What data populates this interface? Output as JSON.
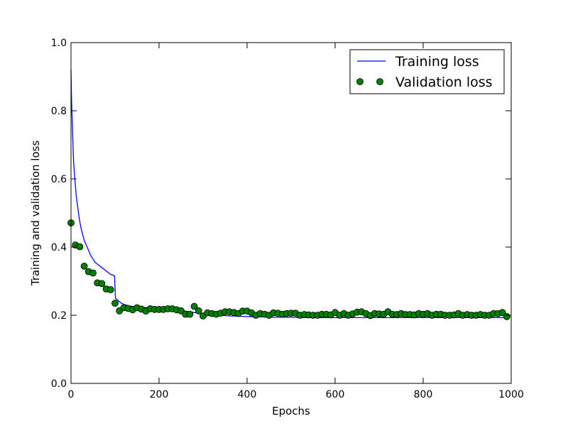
{
  "chart_data": {
    "type": "line",
    "title": "",
    "xlabel": "Epochs",
    "ylabel": "Training and validation loss",
    "xlim": [
      0,
      1000
    ],
    "ylim": [
      0.0,
      1.0
    ],
    "xticks": [
      0,
      200,
      400,
      600,
      800,
      1000
    ],
    "xtick_labels": [
      "0",
      "200",
      "400",
      "600",
      "800",
      "1000"
    ],
    "yticks": [
      0.0,
      0.2,
      0.4,
      0.6,
      0.8,
      1.0
    ],
    "ytick_labels": [
      "0.0",
      "0.2",
      "0.4",
      "0.6",
      "0.8",
      "1.0"
    ],
    "grid": false,
    "legend_position": "top-right",
    "series": [
      {
        "name": "Training loss",
        "kind": "line",
        "color": "#0000ff",
        "x": [
          0,
          1,
          2,
          3,
          4,
          5,
          6,
          8,
          10,
          12,
          15,
          18,
          22,
          26,
          30,
          35,
          40,
          45,
          50,
          55,
          60,
          65,
          70,
          75,
          80,
          85,
          90,
          95,
          99,
          101,
          105,
          110,
          115,
          120,
          130,
          140,
          150,
          160,
          170,
          180,
          200,
          220,
          240,
          260,
          280,
          300,
          320,
          340,
          360,
          380,
          400,
          420,
          440,
          460,
          480,
          500,
          520,
          540,
          560,
          580,
          600,
          620,
          640,
          660,
          680,
          700,
          720,
          740,
          760,
          780,
          800,
          820,
          840,
          860,
          880,
          900,
          920,
          940,
          960,
          980,
          995
        ],
        "y": [
          0.92,
          0.85,
          0.8,
          0.76,
          0.72,
          0.68,
          0.65,
          0.61,
          0.58,
          0.55,
          0.52,
          0.49,
          0.46,
          0.44,
          0.42,
          0.405,
          0.39,
          0.375,
          0.365,
          0.355,
          0.35,
          0.345,
          0.34,
          0.335,
          0.33,
          0.325,
          0.32,
          0.318,
          0.315,
          0.25,
          0.245,
          0.24,
          0.235,
          0.232,
          0.228,
          0.226,
          0.225,
          0.224,
          0.222,
          0.222,
          0.22,
          0.218,
          0.216,
          0.212,
          0.208,
          0.205,
          0.203,
          0.2,
          0.198,
          0.197,
          0.196,
          0.195,
          0.195,
          0.194,
          0.194,
          0.194,
          0.193,
          0.193,
          0.193,
          0.193,
          0.193,
          0.193,
          0.193,
          0.193,
          0.193,
          0.193,
          0.193,
          0.193,
          0.193,
          0.193,
          0.193,
          0.193,
          0.193,
          0.193,
          0.193,
          0.193,
          0.193,
          0.193,
          0.193,
          0.193,
          0.193
        ]
      },
      {
        "name": "Validation loss",
        "kind": "scatter",
        "color": "#007f00",
        "x": [
          0,
          10,
          20,
          30,
          40,
          50,
          60,
          70,
          80,
          90,
          100,
          110,
          120,
          130,
          140,
          150,
          160,
          170,
          180,
          190,
          200,
          210,
          220,
          230,
          240,
          250,
          260,
          270,
          280,
          290,
          300,
          310,
          320,
          330,
          340,
          350,
          360,
          370,
          380,
          390,
          400,
          410,
          420,
          430,
          440,
          450,
          460,
          470,
          480,
          490,
          500,
          510,
          520,
          530,
          540,
          550,
          560,
          570,
          580,
          590,
          600,
          610,
          620,
          630,
          640,
          650,
          660,
          670,
          680,
          690,
          700,
          710,
          720,
          730,
          740,
          750,
          760,
          770,
          780,
          790,
          800,
          810,
          820,
          830,
          840,
          850,
          860,
          870,
          880,
          890,
          900,
          910,
          920,
          930,
          940,
          950,
          960,
          970,
          980,
          990
        ],
        "y": [
          0.471,
          0.406,
          0.401,
          0.344,
          0.328,
          0.324,
          0.295,
          0.293,
          0.277,
          0.275,
          0.235,
          0.213,
          0.222,
          0.22,
          0.216,
          0.222,
          0.218,
          0.212,
          0.219,
          0.217,
          0.217,
          0.217,
          0.219,
          0.219,
          0.216,
          0.213,
          0.203,
          0.203,
          0.226,
          0.213,
          0.198,
          0.207,
          0.205,
          0.203,
          0.206,
          0.21,
          0.21,
          0.208,
          0.205,
          0.212,
          0.212,
          0.207,
          0.2,
          0.205,
          0.203,
          0.2,
          0.207,
          0.206,
          0.203,
          0.205,
          0.206,
          0.206,
          0.2,
          0.202,
          0.201,
          0.2,
          0.2,
          0.203,
          0.203,
          0.201,
          0.208,
          0.2,
          0.205,
          0.2,
          0.204,
          0.209,
          0.21,
          0.205,
          0.199,
          0.205,
          0.204,
          0.203,
          0.21,
          0.203,
          0.202,
          0.205,
          0.202,
          0.202,
          0.201,
          0.205,
          0.203,
          0.205,
          0.2,
          0.203,
          0.203,
          0.2,
          0.2,
          0.201,
          0.205,
          0.2,
          0.202,
          0.2,
          0.2,
          0.202,
          0.2,
          0.2,
          0.205,
          0.205,
          0.208,
          0.196
        ]
      }
    ]
  }
}
